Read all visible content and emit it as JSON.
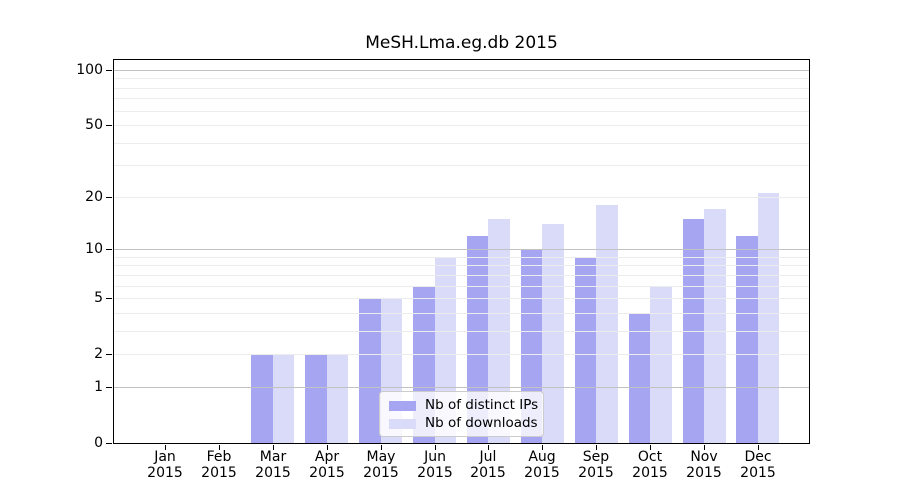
{
  "figure": {
    "title": "MeSH.Lma.eg.db 2015"
  },
  "chart_data": {
    "type": "bar",
    "title": "MeSH.Lma.eg.db 2015",
    "categories": [
      "Jan",
      "Feb",
      "Mar",
      "Apr",
      "May",
      "Jun",
      "Jul",
      "Aug",
      "Sep",
      "Oct",
      "Nov",
      "Dec"
    ],
    "year_label": "2015",
    "series": [
      {
        "name": "Nb of distinct IPs",
        "color": "#a5a5f1",
        "values": [
          0,
          0,
          2,
          2,
          5,
          6,
          12,
          10,
          9,
          4,
          15,
          12
        ]
      },
      {
        "name": "Nb of downloads",
        "color": "#dadaf9",
        "values": [
          0,
          0,
          2,
          2,
          5,
          9,
          15,
          14,
          18,
          6,
          17,
          21
        ]
      }
    ],
    "yscale": "log(1+y)",
    "ylim": [
      0,
      113
    ],
    "yticks": [
      0,
      1,
      2,
      5,
      10,
      20,
      50,
      100
    ],
    "grid": true,
    "major_grid_values": [
      1,
      10,
      100
    ],
    "minor_grid_values": [
      2,
      3,
      4,
      5,
      6,
      7,
      8,
      9,
      20,
      30,
      40,
      50,
      60,
      70,
      80,
      90
    ],
    "legend_position": "bottom-center"
  }
}
